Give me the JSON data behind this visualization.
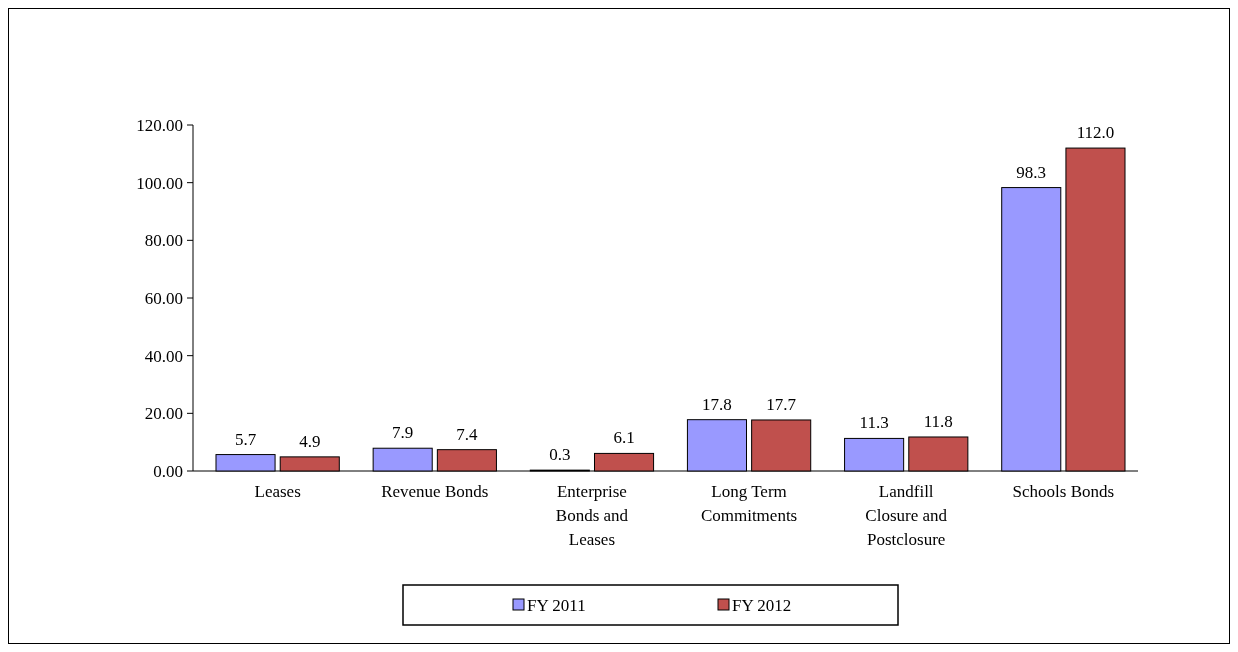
{
  "chart_data": {
    "type": "bar",
    "categories": [
      "Leases",
      "Revenue Bonds",
      "Enterprise Bonds and Leases",
      "Long Term Commitments",
      "Landfill Closure and Postclosure",
      "Schools Bonds"
    ],
    "series": [
      {
        "name": "FY 2011",
        "color": "#9999ff",
        "values": [
          5.7,
          7.9,
          0.3,
          17.8,
          11.3,
          98.3
        ],
        "value_labels": [
          "5.7",
          "7.9",
          "0.3",
          "17.8",
          "11.3",
          "98.3"
        ]
      },
      {
        "name": "FY 2012",
        "color": "#c0504d",
        "values": [
          4.9,
          7.4,
          6.1,
          17.7,
          11.8,
          112.0
        ],
        "value_labels": [
          "4.9",
          "7.4",
          "6.1",
          "17.7",
          "11.8",
          "112.0"
        ]
      }
    ],
    "ylim": [
      0,
      120
    ],
    "yticks": [
      {
        "value": 0,
        "label": "0.00"
      },
      {
        "value": 20,
        "label": "20.00"
      },
      {
        "value": 40,
        "label": "40.00"
      },
      {
        "value": 60,
        "label": "60.00"
      },
      {
        "value": 80,
        "label": "80.00"
      },
      {
        "value": 100,
        "label": "100.00"
      },
      {
        "value": 120,
        "label": "120.00"
      }
    ],
    "legend": "bottom",
    "grid": false
  }
}
